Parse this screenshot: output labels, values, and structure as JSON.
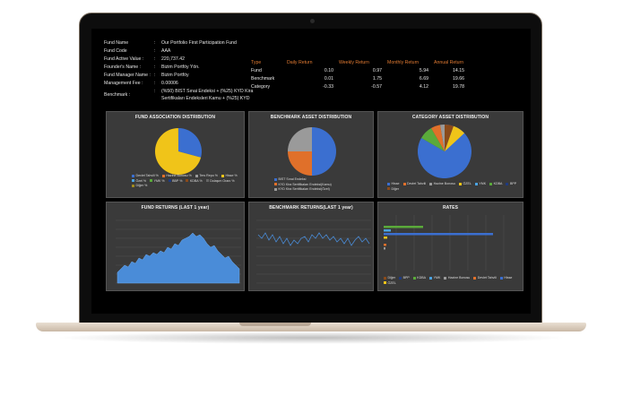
{
  "info": {
    "fund_name_label": "Fund Name",
    "fund_name_value": "Our Portfolio First Participation Fund",
    "fund_code_label": "Fund Code",
    "fund_code_value": "AAA",
    "active_value_label": "Fund Active Value :",
    "active_value_value": "220,737.42",
    "founder_label": "Founder's Name :",
    "founder_value": "Bizim Portföy Yön.",
    "manager_label": "Fund Manager Name :",
    "manager_value": "Bizim Portföy",
    "fee_label": "Management Fee :",
    "fee_value": "0.00006",
    "benchmark_label": "Benchmark :",
    "benchmark_value_1": "(%50) BIST Sınai Endeksi + (%25) KYD Kira",
    "benchmark_value_2": "Sertifikaları Endeksleri Kamu + (%25) KYD",
    "sep": ":"
  },
  "returns": {
    "headers": [
      "Type",
      "Daily Return",
      "Weekly Return",
      "Monthly Return",
      "Annual Return"
    ],
    "rows": [
      [
        "Fund",
        "0.10",
        "0.97",
        "5.94",
        "14.15"
      ],
      [
        "Benchmark",
        "0.01",
        "1.75",
        "6.69",
        "19.66"
      ],
      [
        "Category",
        "-0.33",
        "-0.57",
        "4.12",
        "19.78"
      ]
    ]
  },
  "panels": {
    "fund_assoc": {
      "title": "FUND ASSOCIATION DISTRIBUTION",
      "legend": [
        "Devlet Tahvili %",
        "Hazine Bonosu %",
        "Ters Repo %",
        "Hisse %",
        "Özel %",
        "YMK %",
        "BBP %",
        "KDBA %",
        "Dolaşım Oranı %",
        "Diğer %"
      ],
      "colors": [
        "#3b6fd0",
        "#e0702a",
        "#9a9a9a",
        "#f0c419",
        "#4aa2e0",
        "#5aaa3a",
        "#1e3a80",
        "#8a4a1a",
        "#666666",
        "#a08a20"
      ]
    },
    "bench_assoc": {
      "title": "BENCHMARK ASSET DISTRIBUTION",
      "legend": [
        "BIST Sınai Endeksi",
        "KYD Kira Sertifikaları Endeksi(Kamu)",
        "KYD Kira Sertifikaları Endeksi(Özel)"
      ],
      "colors": [
        "#3b6fd0",
        "#e0702a",
        "#9a9a9a"
      ]
    },
    "category_assoc": {
      "title": "CATEGORY ASSET DISTRIBUTION",
      "legend": [
        "Hisse",
        "Devlet Tahvili",
        "Hazine Bonosu",
        "ÖZEL",
        "YMK",
        "KDBA",
        "BPP",
        "Diğer"
      ],
      "colors": [
        "#3b6fd0",
        "#e0702a",
        "#9a9a9a",
        "#f0c419",
        "#4aa2e0",
        "#5aaa3a",
        "#1e3a80",
        "#8a4a1a"
      ]
    },
    "fund_returns": {
      "title": "FUND RETURNS (LAST 1 year)"
    },
    "bench_returns": {
      "title": "BENCHMARK RETURNS(LAST 1 year)"
    },
    "rates": {
      "title": "RATES",
      "legend": [
        "Diğer",
        "BPP",
        "KDBA",
        "YMK",
        "Hazine Bonosu",
        "Devlet Tahvili",
        "Hisse",
        "ÖZEL"
      ],
      "colors": [
        "#8a4a1a",
        "#1e3a80",
        "#5aaa3a",
        "#4aa2e0",
        "#9a9a9a",
        "#e0702a",
        "#3b6fd0",
        "#f0c419"
      ]
    }
  }
}
